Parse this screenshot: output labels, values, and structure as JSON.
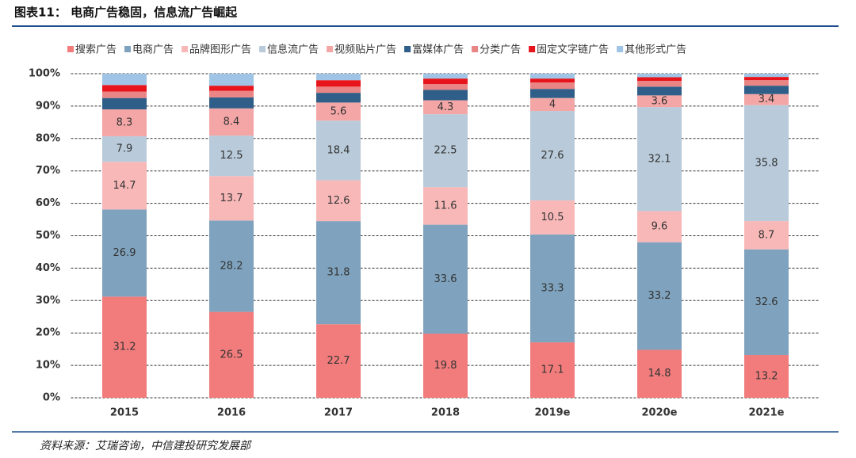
{
  "chart_data": {
    "type": "stacked_bar",
    "title": "图表11： 电商广告稳固，信息流广告崛起",
    "source": "资料来源：艾瑞咨询，中信建投研究发展部",
    "categories": [
      "2015",
      "2016",
      "2017",
      "2018",
      "2019e",
      "2020e",
      "2021e"
    ],
    "series": [
      {
        "name": "搜索广告",
        "color": "#f27c7c",
        "data_labels": true,
        "values": [
          31.2,
          26.5,
          22.7,
          19.8,
          17.1,
          14.8,
          13.2
        ]
      },
      {
        "name": "电商广告",
        "color": "#7fa3be",
        "data_labels": true,
        "values": [
          26.9,
          28.2,
          31.8,
          33.6,
          33.3,
          33.2,
          32.6
        ]
      },
      {
        "name": "品牌图形广告",
        "color": "#f9b8b8",
        "data_labels": true,
        "values": [
          14.7,
          13.7,
          12.6,
          11.6,
          10.5,
          9.6,
          8.7
        ]
      },
      {
        "name": "信息流广告",
        "color": "#b9cbda",
        "data_labels": true,
        "values": [
          7.9,
          12.5,
          18.4,
          22.5,
          27.6,
          32.1,
          35.8
        ]
      },
      {
        "name": "视频贴片广告",
        "color": "#f4a6a6",
        "data_labels": true,
        "values": [
          8.3,
          8.4,
          5.6,
          4.3,
          4,
          3.6,
          3.4
        ]
      },
      {
        "name": "富媒体广告",
        "color": "#2f5f88",
        "data_labels": false,
        "values": [
          3.5,
          3.4,
          3,
          3.2,
          2.8,
          2.7,
          2.6
        ]
      },
      {
        "name": "分类广告",
        "color": "#e98585",
        "data_labels": false,
        "values": [
          2,
          2,
          1.9,
          1.8,
          2,
          1.8,
          1.7
        ]
      },
      {
        "name": "固定文字链广告",
        "color": "#e8141c",
        "data_labels": false,
        "values": [
          2,
          1.6,
          2,
          1.7,
          1.2,
          1.1,
          1
        ]
      },
      {
        "name": "其他形式广告",
        "color": "#9fc4e6",
        "data_labels": false,
        "values": [
          3.5,
          3.7,
          2,
          1.5,
          1.5,
          1.1,
          1
        ]
      }
    ],
    "ylim": [
      0,
      100
    ],
    "yticks": [
      {
        "value": 0,
        "label": "0%"
      },
      {
        "value": 10,
        "label": "10%"
      },
      {
        "value": 20,
        "label": "20%"
      },
      {
        "value": 30,
        "label": "30%"
      },
      {
        "value": 40,
        "label": "40%"
      },
      {
        "value": 50,
        "label": "50%"
      },
      {
        "value": 60,
        "label": "60%"
      },
      {
        "value": 70,
        "label": "70%"
      },
      {
        "value": 80,
        "label": "80%"
      },
      {
        "value": 90,
        "label": "90%"
      },
      {
        "value": 100,
        "label": "100%"
      }
    ],
    "grid": true,
    "legend": "top"
  }
}
